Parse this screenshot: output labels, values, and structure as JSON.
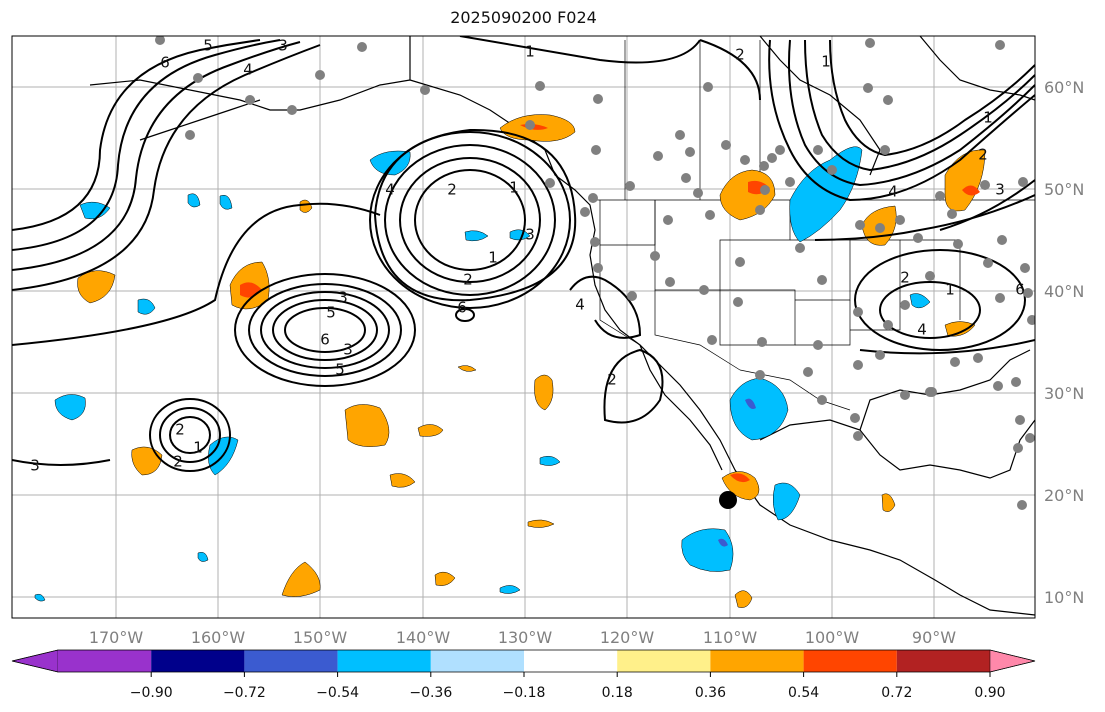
{
  "title": "2025090200 F024",
  "map": {
    "lat_labels": [
      "60°N",
      "50°N",
      "40°N",
      "30°N",
      "20°N",
      "10°N"
    ],
    "lon_labels": [
      "170°W",
      "160°W",
      "150°W",
      "140°W",
      "130°W",
      "120°W",
      "110°W",
      "100°W",
      "90°W"
    ],
    "colors": {
      "positive_low": "#fff08a",
      "positive_mid": "#ffa500",
      "positive_high": "#ff4500",
      "negative_mid": "#00bfff",
      "negative_low": "#b0e0ff",
      "negative_high": "#3b5bd0",
      "station": "#808080",
      "contour": "#000000"
    }
  },
  "colorbar": {
    "ticks": [
      "−0.90",
      "−0.72",
      "−0.54",
      "−0.36",
      "−0.18",
      "0.18",
      "0.36",
      "0.54",
      "0.72",
      "0.90"
    ],
    "colors": [
      "#9932cc",
      "#00008b",
      "#3b5bd0",
      "#00bfff",
      "#b0e0ff",
      "#ffffff",
      "#fff08a",
      "#ffa500",
      "#ff4500",
      "#b22222",
      "#ff88aa"
    ]
  },
  "contour_labels": [
    "6",
    "5",
    "4",
    "3",
    "2",
    "1",
    "1",
    "2",
    "3",
    "5",
    "6",
    "3",
    "5",
    "6",
    "4",
    "2",
    "1",
    "2",
    "1",
    "4",
    "3",
    "2",
    "1",
    "2",
    "1",
    "4",
    "6",
    "2",
    "1",
    "2",
    "3",
    "4",
    "3"
  ]
}
